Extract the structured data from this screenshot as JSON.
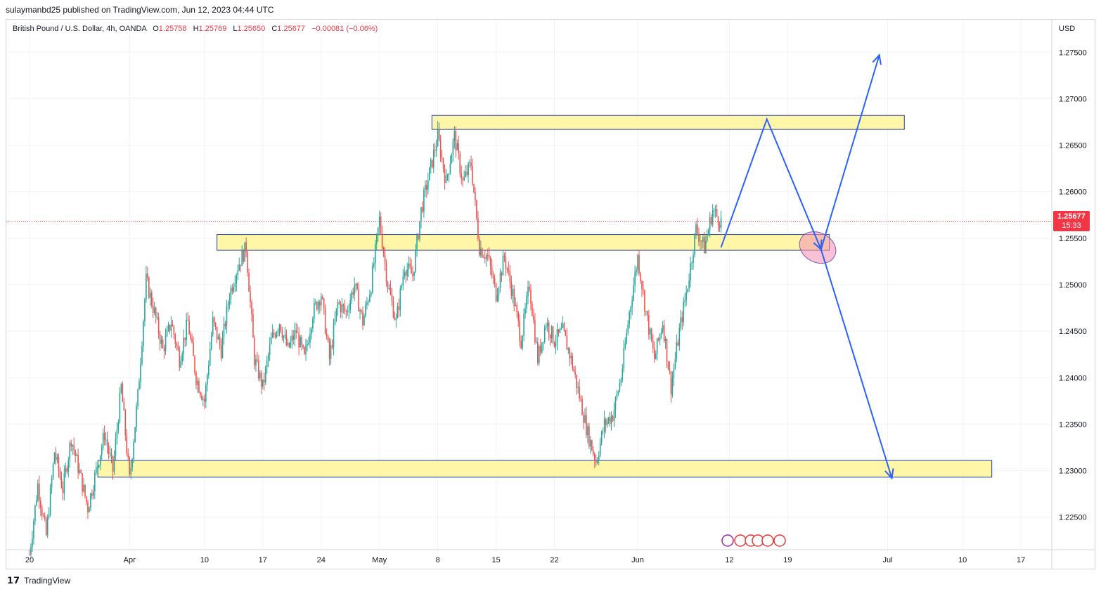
{
  "publication": "sulaymanbd25 published on TradingView.com, Jun 12, 2023 04:44 UTC",
  "legend": {
    "symbol": "British Pound / U.S. Dollar, 4h, OANDA",
    "o_label": "O",
    "o_value": "1.25758",
    "h_label": "H",
    "h_value": "1.25769",
    "l_label": "L",
    "l_value": "1.25650",
    "c_label": "C",
    "c_value": "1.25677",
    "change": "−0.00081 (−0.06%)"
  },
  "price_axis": {
    "currency": "USD"
  },
  "last_price": {
    "value": "1.25677",
    "countdown": "15:33"
  },
  "footer": {
    "brand": "TradingView"
  },
  "colors": {
    "up": "#26a69a",
    "down": "#ef5350",
    "zone": "#fff59d",
    "zone_border": "#1f3fa8",
    "arrow": "#2962ff",
    "last_price_line": "#f23645"
  },
  "chart_data": {
    "type": "candlestick",
    "symbol": "GBPUSD",
    "timeframe": "4h",
    "ylim": [
      1.2215,
      1.2785
    ],
    "y_ticks": [
      "1.22500",
      "1.23000",
      "1.23500",
      "1.24000",
      "1.24500",
      "1.25000",
      "1.25500",
      "1.26000",
      "1.26500",
      "1.27000",
      "1.27500"
    ],
    "x_ticks": [
      {
        "label": "20",
        "day": 0
      },
      {
        "label": "Apr",
        "day": 12
      },
      {
        "label": "10",
        "day": 21
      },
      {
        "label": "17",
        "day": 28
      },
      {
        "label": "24",
        "day": 35
      },
      {
        "label": "May",
        "day": 42
      },
      {
        "label": "8",
        "day": 49
      },
      {
        "label": "15",
        "day": 56
      },
      {
        "label": "22",
        "day": 63
      },
      {
        "label": "Jun",
        "day": 73
      },
      {
        "label": "12",
        "day": 84
      },
      {
        "label": "19",
        "day": 91
      },
      {
        "label": "Jul",
        "day": 103
      },
      {
        "label": "10",
        "day": 112
      },
      {
        "label": "17",
        "day": 119
      }
    ],
    "price_path": [
      [
        0,
        1.221
      ],
      [
        1,
        1.2285
      ],
      [
        2,
        1.223
      ],
      [
        3,
        1.232
      ],
      [
        4,
        1.228
      ],
      [
        5,
        1.2335
      ],
      [
        7,
        1.226
      ],
      [
        8,
        1.23
      ],
      [
        9,
        1.234
      ],
      [
        10,
        1.23
      ],
      [
        11,
        1.239
      ],
      [
        12,
        1.229
      ],
      [
        13,
        1.238
      ],
      [
        14,
        1.2505
      ],
      [
        15,
        1.247
      ],
      [
        16,
        1.243
      ],
      [
        17,
        1.246
      ],
      [
        18,
        1.242
      ],
      [
        19,
        1.246
      ],
      [
        20,
        1.24
      ],
      [
        21,
        1.2375
      ],
      [
        22,
        1.246
      ],
      [
        23,
        1.243
      ],
      [
        24,
        1.249
      ],
      [
        25,
        1.252
      ],
      [
        26,
        1.254
      ],
      [
        27,
        1.242
      ],
      [
        28,
        1.239
      ],
      [
        29,
        1.244
      ],
      [
        30,
        1.246
      ],
      [
        31,
        1.243
      ],
      [
        32,
        1.245
      ],
      [
        33,
        1.242
      ],
      [
        34,
        1.247
      ],
      [
        35,
        1.249
      ],
      [
        36,
        1.242
      ],
      [
        37,
        1.248
      ],
      [
        38,
        1.247
      ],
      [
        39,
        1.25
      ],
      [
        40,
        1.246
      ],
      [
        41,
        1.25
      ],
      [
        42,
        1.257
      ],
      [
        43,
        1.25
      ],
      [
        44,
        1.246
      ],
      [
        45,
        1.252
      ],
      [
        46,
        1.251
      ],
      [
        47,
        1.258
      ],
      [
        48,
        1.262
      ],
      [
        49,
        1.266
      ],
      [
        50,
        1.261
      ],
      [
        51,
        1.266
      ],
      [
        52,
        1.261
      ],
      [
        53,
        1.263
      ],
      [
        54,
        1.254
      ],
      [
        55,
        1.253
      ],
      [
        56,
        1.249
      ],
      [
        57,
        1.253
      ],
      [
        58,
        1.249
      ],
      [
        59,
        1.244
      ],
      [
        60,
        1.25
      ],
      [
        61,
        1.242
      ],
      [
        62,
        1.246
      ],
      [
        63,
        1.244
      ],
      [
        64,
        1.245
      ],
      [
        65,
        1.242
      ],
      [
        66,
        1.238
      ],
      [
        67,
        1.234
      ],
      [
        68,
        1.231
      ],
      [
        69,
        1.235
      ],
      [
        70,
        1.236
      ],
      [
        71,
        1.24
      ],
      [
        72,
        1.247
      ],
      [
        73,
        1.253
      ],
      [
        74,
        1.247
      ],
      [
        75,
        1.242
      ],
      [
        76,
        1.246
      ],
      [
        77,
        1.239
      ],
      [
        78,
        1.245
      ],
      [
        79,
        1.25
      ],
      [
        80,
        1.256
      ],
      [
        81,
        1.254
      ],
      [
        82,
        1.258
      ],
      [
        83,
        1.25677
      ]
    ],
    "zones": [
      {
        "name": "upper-resistance",
        "top": 1.2682,
        "bottom": 1.2667,
        "from_day": 48.3,
        "to_day": 105
      },
      {
        "name": "middle-zone",
        "top": 1.2554,
        "bottom": 1.2537,
        "from_day": 22.5,
        "to_day": 96
      },
      {
        "name": "lower-support",
        "top": 1.2311,
        "bottom": 1.2293,
        "from_day": 8.2,
        "to_day": 115.5
      }
    ],
    "projection_path": [
      [
        83,
        1.254
      ],
      [
        88.5,
        1.2678
      ],
      [
        95,
        1.2538
      ],
      [
        102,
        1.2747
      ]
    ],
    "projection_path_2": [
      [
        95,
        1.2538
      ],
      [
        103.5,
        1.2292
      ]
    ],
    "highlight": {
      "day": 94.6,
      "price": 1.254
    },
    "last_price": 1.25677,
    "grid": true
  }
}
